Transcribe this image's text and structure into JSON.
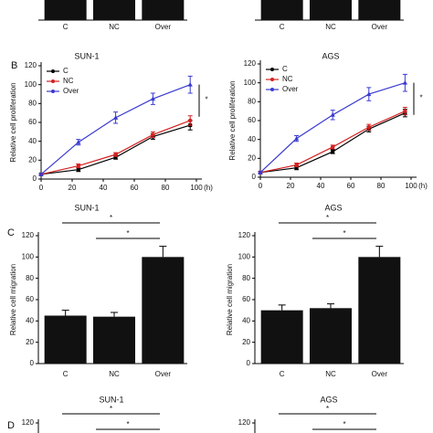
{
  "chart_data": [
    {
      "type": "bar",
      "categories": [
        "C",
        "NC",
        "Over"
      ]
    },
    {
      "type": "bar",
      "categories": [
        "C",
        "NC",
        "Over"
      ]
    },
    {
      "type": "line",
      "panel": "B",
      "title": "SUN-1",
      "ylabel": "Relative cell proliferation",
      "xlabel": "(h)",
      "x": [
        0,
        24,
        48,
        72,
        96
      ],
      "xlim": [
        0,
        100
      ],
      "xticks": [
        0,
        20,
        40,
        60,
        80,
        100
      ],
      "ylim": [
        0,
        120
      ],
      "yticks": [
        0,
        20,
        40,
        60,
        80,
        100,
        120
      ],
      "significance": [
        "*"
      ],
      "series": [
        {
          "name": "C",
          "color": "#000000",
          "values": [
            5,
            10,
            23,
            45,
            57
          ],
          "errors": [
            1,
            2,
            2,
            3,
            5
          ]
        },
        {
          "name": "NC",
          "color": "#d62020",
          "values": [
            5,
            14,
            26,
            47,
            62
          ],
          "errors": [
            1,
            2,
            2,
            3,
            5
          ]
        },
        {
          "name": "Over",
          "color": "#3a3ad0",
          "values": [
            5,
            39,
            65,
            85,
            100
          ],
          "errors": [
            1,
            3,
            6,
            6,
            9
          ]
        }
      ]
    },
    {
      "type": "line",
      "title": "AGS",
      "ylabel": "Relative cell proliferation",
      "xlabel": "(h)",
      "x": [
        0,
        24,
        48,
        72,
        96
      ],
      "xlim": [
        0,
        100
      ],
      "xticks": [
        0,
        20,
        40,
        60,
        80,
        100
      ],
      "ylim": [
        0,
        120
      ],
      "yticks": [
        0,
        20,
        40,
        60,
        80,
        100,
        120
      ],
      "significance": [
        "*"
      ],
      "series": [
        {
          "name": "C",
          "color": "#000000",
          "values": [
            5,
            10,
            27,
            51,
            68
          ],
          "errors": [
            1,
            2,
            2,
            3,
            4
          ]
        },
        {
          "name": "NC",
          "color": "#d62020",
          "values": [
            5,
            13,
            32,
            53,
            70
          ],
          "errors": [
            1,
            2,
            2,
            3,
            4
          ]
        },
        {
          "name": "Over",
          "color": "#3a3ad0",
          "values": [
            5,
            41,
            66,
            88,
            100
          ],
          "errors": [
            1,
            3,
            5,
            7,
            9
          ]
        }
      ]
    },
    {
      "type": "bar",
      "panel": "C",
      "title": "SUN-1",
      "ylabel": "Relative cell migration",
      "categories": [
        "C",
        "NC",
        "Over"
      ],
      "values": [
        45,
        44,
        100
      ],
      "errors": [
        5,
        4,
        10
      ],
      "color": "#111111",
      "ylim": [
        0,
        120
      ],
      "yticks": [
        0,
        20,
        40,
        60,
        80,
        100,
        120
      ],
      "significance": [
        "*",
        "*"
      ]
    },
    {
      "type": "bar",
      "title": "AGS",
      "ylabel": "Relative cell migration",
      "categories": [
        "C",
        "NC",
        "Over"
      ],
      "values": [
        50,
        52,
        100
      ],
      "errors": [
        5,
        4,
        10
      ],
      "color": "#111111",
      "ylim": [
        0,
        120
      ],
      "yticks": [
        0,
        20,
        40,
        60,
        80,
        100,
        120
      ],
      "significance": [
        "*",
        "*"
      ]
    },
    {
      "type": "bar",
      "panel": "D",
      "title": "SUN-1",
      "ylim": [
        0,
        120
      ],
      "yticks": [
        120
      ],
      "significance": [
        "*",
        "*"
      ]
    },
    {
      "type": "bar",
      "title": "AGS",
      "ylim": [
        0,
        120
      ],
      "yticks": [
        120
      ],
      "significance": [
        "*",
        "*"
      ]
    }
  ]
}
